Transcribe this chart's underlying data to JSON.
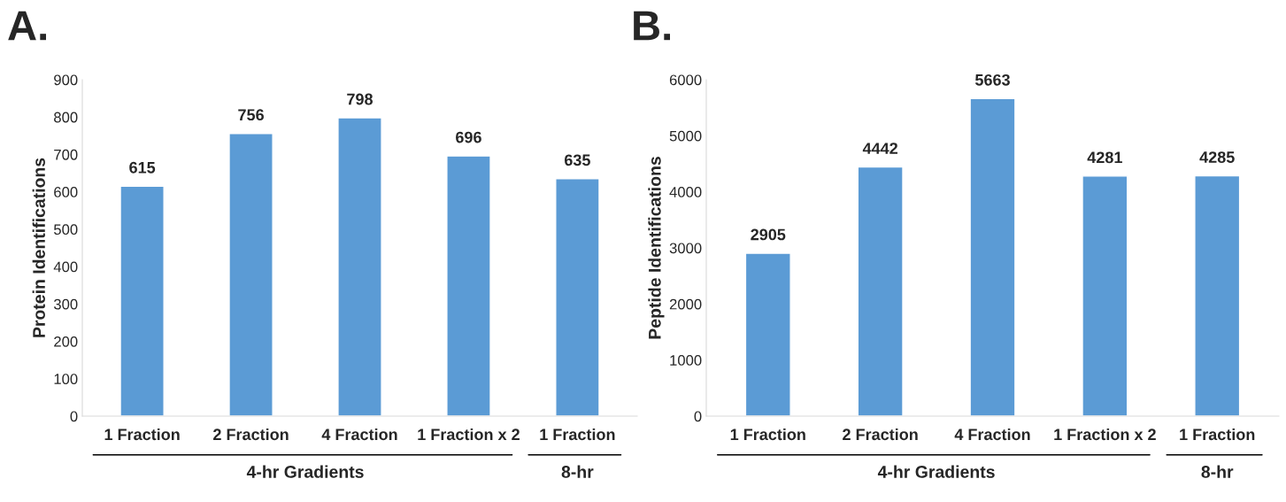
{
  "chart_data": [
    {
      "type": "bar",
      "title": "A.",
      "ylabel": "Protein Identifications",
      "categories": [
        "1 Fraction",
        "2 Fraction",
        "4 Fraction",
        "1 Fraction x 2",
        "1 Fraction"
      ],
      "values": [
        615,
        756,
        798,
        696,
        635
      ],
      "color": "#5b9bd5",
      "ylim": [
        0,
        900
      ],
      "yticks": [
        0,
        100,
        200,
        300,
        400,
        500,
        600,
        700,
        800,
        900
      ],
      "data_labels": true,
      "grid": false,
      "legend": false,
      "annotations": [
        "4-hr Gradients",
        "8-hr"
      ]
    },
    {
      "type": "bar",
      "title": "B.",
      "ylabel": "Peptide Identifications",
      "categories": [
        "1 Fraction",
        "2 Fraction",
        "4 Fraction",
        "1 Fraction x 2",
        "1 Fraction"
      ],
      "values": [
        2905,
        4442,
        5663,
        4281,
        4285
      ],
      "color": "#5b9bd5",
      "ylim": [
        0,
        6000
      ],
      "yticks": [
        0,
        1000,
        2000,
        3000,
        4000,
        5000,
        6000
      ],
      "data_labels": true,
      "grid": false,
      "legend": false,
      "annotations": [
        "4-hr Gradients",
        "8-hr"
      ]
    }
  ]
}
